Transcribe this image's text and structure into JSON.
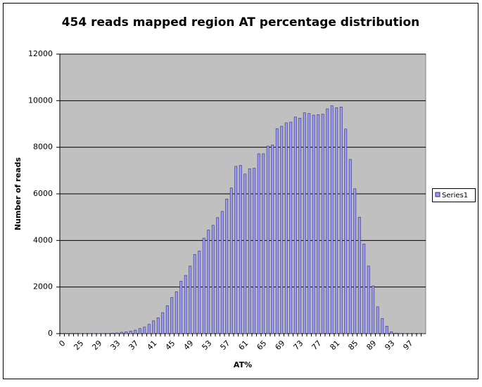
{
  "chart_data": {
    "type": "bar",
    "title": "454 reads mapped region AT percentage distribution",
    "x_label": "AT%",
    "y_label": "Number of reads",
    "categories": [
      0,
      null,
      null,
      null,
      25,
      null,
      null,
      null,
      29,
      null,
      null,
      null,
      33,
      null,
      null,
      null,
      37,
      null,
      null,
      null,
      41,
      null,
      null,
      null,
      45,
      null,
      null,
      null,
      49,
      null,
      null,
      null,
      53,
      null,
      null,
      null,
      57,
      null,
      null,
      null,
      61,
      null,
      null,
      null,
      65,
      null,
      null,
      null,
      69,
      null,
      null,
      null,
      73,
      null,
      null,
      null,
      77,
      null,
      null,
      null,
      81,
      null,
      null,
      null,
      85,
      null,
      null,
      null,
      89,
      null,
      null,
      null,
      93,
      null,
      null,
      null,
      97,
      null,
      null,
      null
    ],
    "series": [
      {
        "name": "Series1",
        "color": "#9999ff",
        "values": [
          0,
          0,
          0,
          0,
          5,
          5,
          5,
          5,
          5,
          10,
          10,
          20,
          30,
          60,
          80,
          110,
          150,
          220,
          280,
          400,
          550,
          680,
          900,
          1200,
          1550,
          1800,
          2250,
          2500,
          2900,
          3400,
          3550,
          4100,
          4450,
          4650,
          4980,
          5250,
          5780,
          6250,
          7180,
          7220,
          6850,
          7080,
          7100,
          7720,
          7720,
          8050,
          8100,
          8800,
          8900,
          9050,
          9080,
          9300,
          9250,
          9480,
          9450,
          9380,
          9400,
          9420,
          9650,
          9780,
          9700,
          9730,
          8780,
          7480,
          6220,
          5000,
          3850,
          2900,
          2050,
          1150,
          650,
          320,
          80,
          20,
          10,
          5,
          5,
          5,
          5,
          5
        ]
      }
    ],
    "ylim": [
      0,
      12000
    ],
    "yticks": [
      0,
      2000,
      4000,
      6000,
      8000,
      10000,
      12000
    ],
    "grid": true,
    "legend": "right"
  }
}
